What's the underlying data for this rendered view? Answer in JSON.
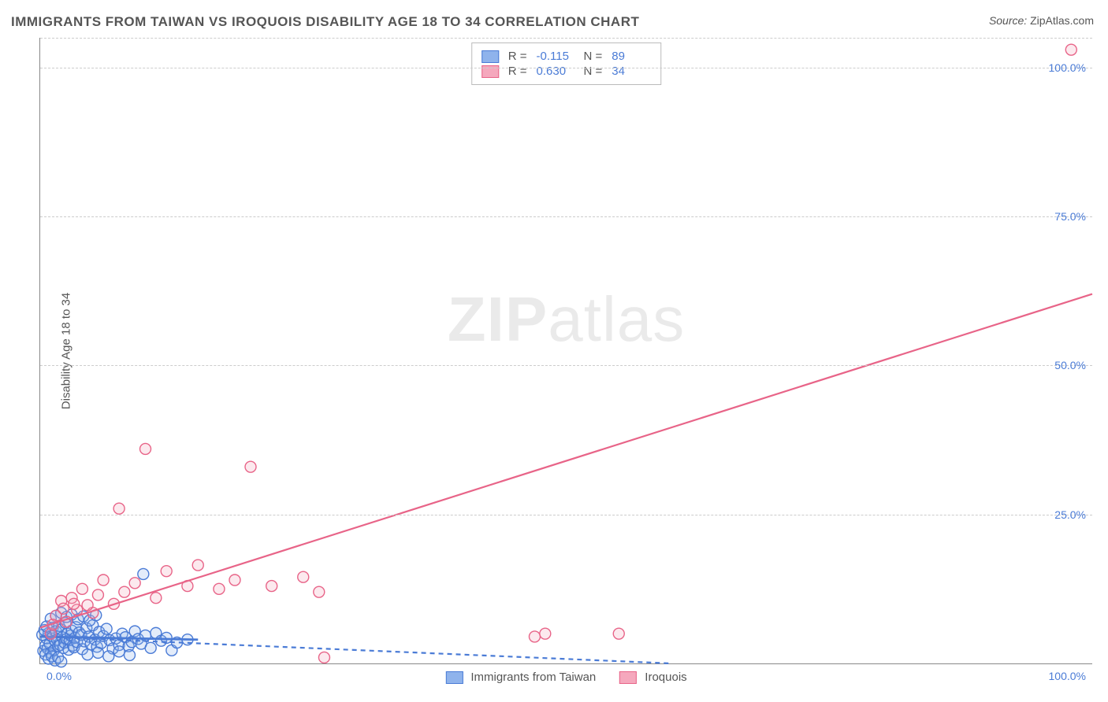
{
  "title": "IMMIGRANTS FROM TAIWAN VS IROQUOIS DISABILITY AGE 18 TO 34 CORRELATION CHART",
  "source_label": "Source: ",
  "source_value": "ZipAtlas.com",
  "ylabel": "Disability Age 18 to 34",
  "watermark_a": "ZIP",
  "watermark_b": "atlas",
  "chart": {
    "type": "scatter",
    "xlim": [
      0,
      100
    ],
    "ylim": [
      0,
      105
    ],
    "x_ticks": [
      {
        "v": 0,
        "label": "0.0%"
      },
      {
        "v": 100,
        "label": "100.0%"
      }
    ],
    "y_ticks": [
      {
        "v": 25,
        "label": "25.0%"
      },
      {
        "v": 50,
        "label": "50.0%"
      },
      {
        "v": 75,
        "label": "75.0%"
      },
      {
        "v": 100,
        "label": "100.0%"
      }
    ],
    "y_gridlines": [
      25,
      50,
      75,
      100,
      105
    ],
    "grid_color": "#cccccc",
    "background_color": "#ffffff",
    "axis_color": "#888888",
    "tick_label_color": "#4a7bd6",
    "marker_radius": 7,
    "marker_stroke_width": 1.4,
    "marker_fill_opacity": 0.25,
    "trend_line_width": 2.2
  },
  "series": [
    {
      "name": "Immigrants from Taiwan",
      "color_stroke": "#4a7bd6",
      "color_fill": "#8fb3ec",
      "R_label": "R =",
      "R": "-0.115",
      "N_label": "N =",
      "N": "89",
      "trend": {
        "x1": 0,
        "y1": 4.5,
        "x2": 60,
        "y2": 0,
        "dash": "6,5"
      },
      "trend_solid": {
        "x1": 0,
        "y1": 4.5,
        "x2": 15,
        "y2": 4.0
      },
      "points": [
        [
          0.3,
          2.1
        ],
        [
          0.5,
          3.0
        ],
        [
          0.6,
          4.2
        ],
        [
          0.7,
          2.5
        ],
        [
          0.8,
          5.1
        ],
        [
          0.9,
          3.3
        ],
        [
          1.0,
          1.8
        ],
        [
          1.1,
          4.6
        ],
        [
          1.2,
          6.0
        ],
        [
          1.3,
          2.2
        ],
        [
          1.4,
          3.8
        ],
        [
          1.5,
          5.4
        ],
        [
          1.6,
          4.0
        ],
        [
          1.7,
          2.9
        ],
        [
          1.8,
          6.3
        ],
        [
          1.9,
          3.1
        ],
        [
          2.0,
          5.7
        ],
        [
          2.1,
          4.4
        ],
        [
          2.2,
          2.6
        ],
        [
          2.3,
          3.5
        ],
        [
          2.4,
          6.8
        ],
        [
          2.5,
          4.1
        ],
        [
          2.6,
          5.0
        ],
        [
          2.7,
          2.3
        ],
        [
          2.8,
          3.9
        ],
        [
          2.9,
          4.7
        ],
        [
          3.0,
          5.5
        ],
        [
          3.1,
          3.0
        ],
        [
          3.2,
          2.7
        ],
        [
          3.3,
          4.3
        ],
        [
          3.4,
          6.1
        ],
        [
          3.5,
          3.6
        ],
        [
          3.7,
          5.2
        ],
        [
          3.9,
          4.8
        ],
        [
          4.0,
          2.4
        ],
        [
          4.2,
          3.7
        ],
        [
          4.4,
          5.9
        ],
        [
          4.6,
          4.5
        ],
        [
          4.8,
          3.2
        ],
        [
          5.0,
          6.4
        ],
        [
          5.2,
          4.0
        ],
        [
          5.4,
          2.8
        ],
        [
          5.6,
          5.3
        ],
        [
          5.8,
          3.4
        ],
        [
          6.0,
          4.6
        ],
        [
          6.3,
          5.8
        ],
        [
          6.6,
          3.9
        ],
        [
          6.9,
          2.5
        ],
        [
          7.2,
          4.2
        ],
        [
          7.5,
          3.1
        ],
        [
          7.8,
          5.0
        ],
        [
          8.1,
          4.4
        ],
        [
          8.4,
          2.9
        ],
        [
          8.7,
          3.6
        ],
        [
          9.0,
          5.4
        ],
        [
          9.3,
          4.1
        ],
        [
          9.6,
          3.3
        ],
        [
          9.8,
          15.0
        ],
        [
          10.0,
          4.7
        ],
        [
          10.5,
          2.6
        ],
        [
          11.0,
          5.1
        ],
        [
          11.5,
          3.8
        ],
        [
          12.0,
          4.3
        ],
        [
          12.5,
          2.2
        ],
        [
          13.0,
          3.5
        ],
        [
          14.0,
          4.0
        ],
        [
          1.0,
          7.5
        ],
        [
          1.5,
          8.0
        ],
        [
          2.0,
          8.5
        ],
        [
          2.5,
          7.8
        ],
        [
          3.0,
          8.2
        ],
        [
          0.5,
          1.5
        ],
        [
          0.8,
          0.8
        ],
        [
          1.1,
          1.2
        ],
        [
          1.4,
          0.5
        ],
        [
          1.7,
          1.0
        ],
        [
          2.0,
          0.3
        ],
        [
          4.5,
          1.5
        ],
        [
          5.5,
          1.8
        ],
        [
          6.5,
          1.2
        ],
        [
          7.5,
          2.0
        ],
        [
          8.5,
          1.4
        ],
        [
          3.6,
          7.4
        ],
        [
          4.1,
          7.9
        ],
        [
          4.7,
          7.2
        ],
        [
          5.3,
          8.1
        ],
        [
          0.2,
          4.8
        ],
        [
          0.4,
          5.6
        ],
        [
          0.6,
          6.2
        ]
      ]
    },
    {
      "name": "Iroquois",
      "color_stroke": "#e86488",
      "color_fill": "#f5a8bd",
      "R_label": "R =",
      "R": "0.630",
      "N_label": "N =",
      "N": "34",
      "trend": {
        "x1": 0,
        "y1": 6.0,
        "x2": 100,
        "y2": 62
      },
      "points": [
        [
          1.0,
          5.0
        ],
        [
          1.5,
          8.0
        ],
        [
          2.0,
          10.5
        ],
        [
          2.5,
          7.0
        ],
        [
          3.0,
          11.0
        ],
        [
          3.5,
          9.0
        ],
        [
          4.0,
          12.5
        ],
        [
          5.0,
          8.5
        ],
        [
          5.5,
          11.5
        ],
        [
          6.0,
          14.0
        ],
        [
          7.0,
          10.0
        ],
        [
          7.5,
          26.0
        ],
        [
          8.0,
          12.0
        ],
        [
          9.0,
          13.5
        ],
        [
          10.0,
          36.0
        ],
        [
          11.0,
          11.0
        ],
        [
          12.0,
          15.5
        ],
        [
          14.0,
          13.0
        ],
        [
          15.0,
          16.5
        ],
        [
          17.0,
          12.5
        ],
        [
          18.5,
          14.0
        ],
        [
          20.0,
          33.0
        ],
        [
          22.0,
          13.0
        ],
        [
          25.0,
          14.5
        ],
        [
          26.5,
          12.0
        ],
        [
          27.0,
          1.0
        ],
        [
          47.0,
          4.5
        ],
        [
          48.0,
          5.0
        ],
        [
          55.0,
          5.0
        ],
        [
          98.0,
          103.0
        ],
        [
          1.2,
          6.5
        ],
        [
          2.2,
          9.2
        ],
        [
          3.2,
          10.0
        ],
        [
          4.5,
          9.8
        ]
      ]
    }
  ],
  "legend_bottom": [
    {
      "swatch_stroke": "#4a7bd6",
      "swatch_fill": "#8fb3ec",
      "label": "Immigrants from Taiwan"
    },
    {
      "swatch_stroke": "#e86488",
      "swatch_fill": "#f5a8bd",
      "label": "Iroquois"
    }
  ]
}
